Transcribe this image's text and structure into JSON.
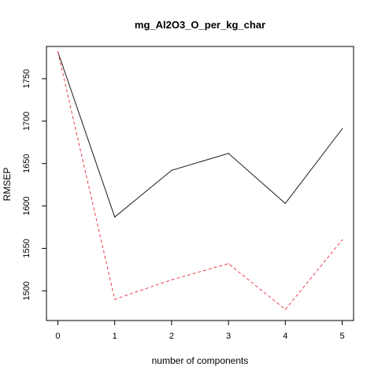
{
  "chart_data": {
    "type": "line",
    "title": "mg_Al2O3_O_per_kg_char",
    "xlabel": "number of components",
    "ylabel": "RMSEP",
    "x": [
      0,
      1,
      2,
      3,
      4,
      5
    ],
    "xticks": [
      "0",
      "1",
      "2",
      "3",
      "4",
      "5"
    ],
    "yticks": [
      "1500",
      "1550",
      "1600",
      "1650",
      "1700",
      "1750"
    ],
    "xlim": [
      -0.2,
      5.2
    ],
    "ylim": [
      1465,
      1788
    ],
    "grid": false,
    "series": [
      {
        "values": [
          1782,
          1587,
          1642,
          1662,
          1603,
          1691
        ],
        "color": "#1a1a1a",
        "line_style": "solid"
      },
      {
        "values": [
          1782,
          1490,
          1513,
          1532,
          1478,
          1560
        ],
        "color": "#e8404f",
        "line_style": "dashed"
      }
    ]
  }
}
